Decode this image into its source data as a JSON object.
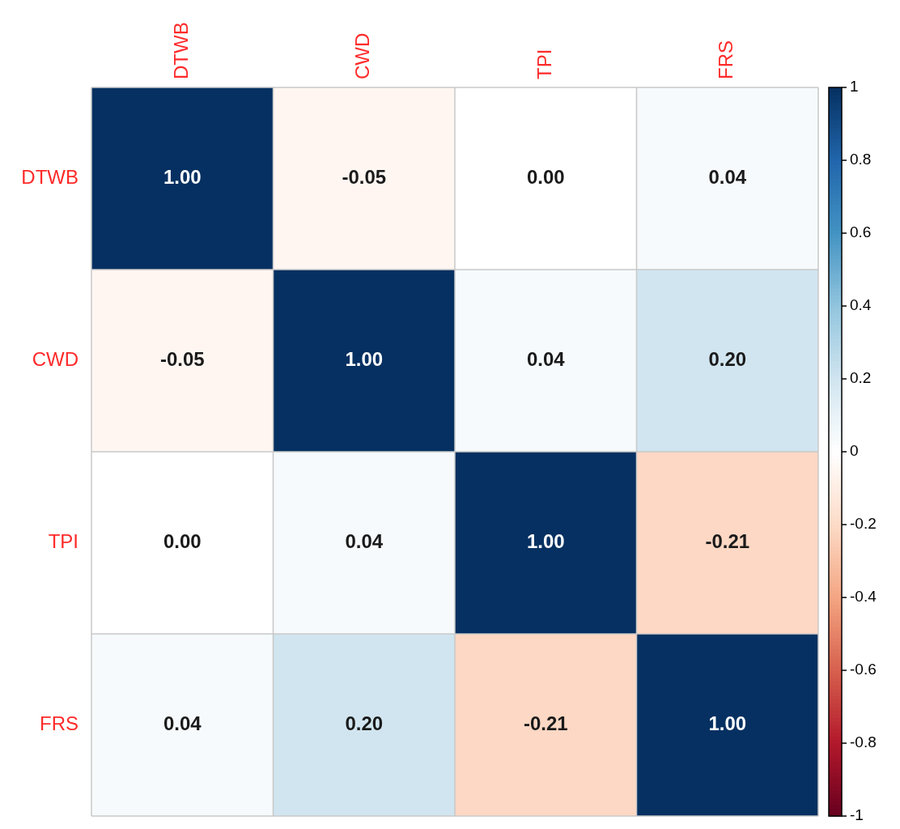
{
  "chart_data": {
    "type": "heatmap",
    "categories": [
      "DTWB",
      "CWD",
      "TPI",
      "FRS"
    ],
    "y_categories": [
      "DTWB",
      "CWD",
      "TPI",
      "FRS"
    ],
    "cells": [
      [
        1,
        -0.05,
        0,
        0.04
      ],
      [
        -0.05,
        1,
        0.04,
        0.2
      ],
      [
        0,
        0.04,
        1,
        -0.21
      ],
      [
        0.04,
        0.2,
        -0.21,
        1
      ]
    ],
    "cell_labels": [
      [
        "1.00",
        "-0.05",
        "0.00",
        "0.04"
      ],
      [
        "-0.05",
        "1.00",
        "0.04",
        "0.20"
      ],
      [
        "0.00",
        "0.04",
        "1.00",
        "-0.21"
      ],
      [
        "0.04",
        "0.20",
        "-0.21",
        "1.00"
      ]
    ],
    "clim": [
      -1,
      1
    ],
    "cticks": [
      -1,
      -0.8,
      -0.6,
      -0.4,
      -0.2,
      0,
      0.2,
      0.4,
      0.6,
      0.8,
      1
    ]
  }
}
